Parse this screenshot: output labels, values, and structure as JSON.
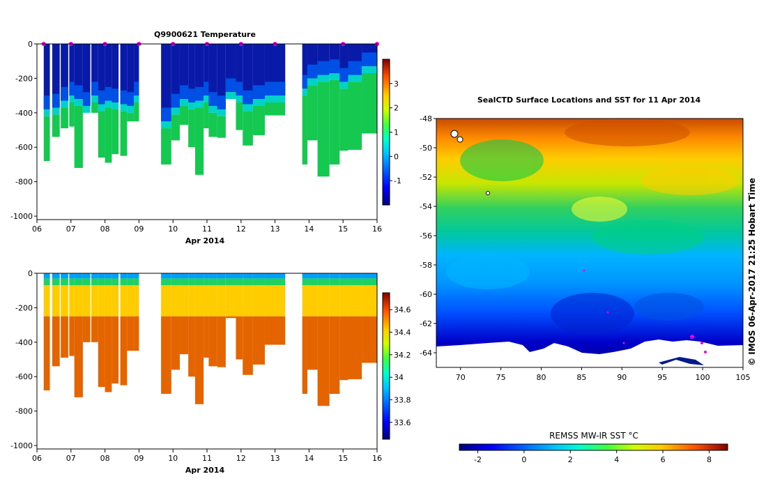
{
  "chart_data": [
    {
      "type": "heatmap",
      "title": "Q9900621  Temperature",
      "xlabel": "Apr 2014",
      "ylabel": "",
      "x_ticks": [
        "06",
        "07",
        "08",
        "09",
        "10",
        "11",
        "12",
        "13",
        "14",
        "15",
        "16"
      ],
      "x_range": [
        6,
        16
      ],
      "y_ticks": [
        0,
        -200,
        -400,
        -600,
        -800,
        -1000
      ],
      "ylim": [
        -1020,
        0
      ],
      "colorbar_ticks": [
        3,
        2,
        1,
        0,
        -1
      ],
      "colorbar_range": [
        -2,
        4
      ],
      "variable": "temperature",
      "gaps": [
        [
          9.0,
          9.65
        ],
        [
          13.3,
          13.8
        ]
      ],
      "profiles": [
        {
          "x": 6.2,
          "w": 0.18,
          "depth": 680,
          "thermocline": 380
        },
        {
          "x": 6.45,
          "w": 0.22,
          "depth": 540,
          "thermocline": 370
        },
        {
          "x": 6.7,
          "w": 0.22,
          "depth": 490,
          "thermocline": 330
        },
        {
          "x": 6.95,
          "w": 0.15,
          "depth": 480,
          "thermocline": 300
        },
        {
          "x": 7.1,
          "w": 0.25,
          "depth": 720,
          "thermocline": 320
        },
        {
          "x": 7.35,
          "w": 0.22,
          "depth": 400,
          "thermocline": 360
        },
        {
          "x": 7.6,
          "w": 0.2,
          "depth": 400,
          "thermocline": 300
        },
        {
          "x": 7.8,
          "w": 0.2,
          "depth": 660,
          "thermocline": 350
        },
        {
          "x": 8.0,
          "w": 0.2,
          "depth": 690,
          "thermocline": 330
        },
        {
          "x": 8.2,
          "w": 0.2,
          "depth": 640,
          "thermocline": 340
        },
        {
          "x": 8.45,
          "w": 0.2,
          "depth": 650,
          "thermocline": 350
        },
        {
          "x": 8.65,
          "w": 0.2,
          "depth": 450,
          "thermocline": 360
        },
        {
          "x": 8.85,
          "w": 0.15,
          "depth": 450,
          "thermocline": 300
        },
        {
          "x": 9.65,
          "w": 0.3,
          "depth": 700,
          "thermocline": 450
        },
        {
          "x": 9.95,
          "w": 0.25,
          "depth": 560,
          "thermocline": 370
        },
        {
          "x": 10.2,
          "w": 0.25,
          "depth": 470,
          "thermocline": 320
        },
        {
          "x": 10.45,
          "w": 0.2,
          "depth": 600,
          "thermocline": 340
        },
        {
          "x": 10.65,
          "w": 0.25,
          "depth": 760,
          "thermocline": 330
        },
        {
          "x": 10.9,
          "w": 0.15,
          "depth": 490,
          "thermocline": 300
        },
        {
          "x": 11.05,
          "w": 0.25,
          "depth": 540,
          "thermocline": 360
        },
        {
          "x": 11.3,
          "w": 0.25,
          "depth": 545,
          "thermocline": 380
        },
        {
          "x": 11.55,
          "w": 0.3,
          "depth": 260,
          "thermocline": 280
        },
        {
          "x": 11.85,
          "w": 0.2,
          "depth": 500,
          "thermocline": 300
        },
        {
          "x": 12.05,
          "w": 0.3,
          "depth": 590,
          "thermocline": 350
        },
        {
          "x": 12.35,
          "w": 0.35,
          "depth": 530,
          "thermocline": 320
        },
        {
          "x": 12.7,
          "w": 0.6,
          "depth": 415,
          "thermocline": 300
        },
        {
          "x": 13.8,
          "w": 0.15,
          "depth": 700,
          "thermocline": 260
        },
        {
          "x": 13.95,
          "w": 0.3,
          "depth": 560,
          "thermocline": 200
        },
        {
          "x": 14.25,
          "w": 0.35,
          "depth": 770,
          "thermocline": 180
        },
        {
          "x": 14.6,
          "w": 0.3,
          "depth": 700,
          "thermocline": 170
        },
        {
          "x": 14.9,
          "w": 0.25,
          "depth": 620,
          "thermocline": 220
        },
        {
          "x": 15.15,
          "w": 0.4,
          "depth": 615,
          "thermocline": 180
        },
        {
          "x": 15.55,
          "w": 0.45,
          "depth": 520,
          "thermocline": 130
        }
      ],
      "surfacings": [
        6.2,
        7.0,
        8.0,
        9.0,
        10.0,
        11.0,
        12.0,
        13.0,
        15.0,
        16.0
      ]
    },
    {
      "type": "heatmap",
      "title": "",
      "xlabel": "Apr 2014",
      "ylabel": "",
      "x_ticks": [
        "06",
        "07",
        "08",
        "09",
        "10",
        "11",
        "12",
        "13",
        "14",
        "15",
        "16"
      ],
      "x_range": [
        6,
        16
      ],
      "y_ticks": [
        0,
        -200,
        -400,
        -600,
        -800,
        -1000
      ],
      "ylim": [
        -1020,
        0
      ],
      "colorbar_ticks": [
        34.6,
        34.4,
        34.2,
        34,
        33.8,
        33.6
      ],
      "colorbar_tick_labels": [
        "34.6",
        "34.4",
        "34.2",
        "34",
        "33.8",
        "33.6"
      ],
      "colorbar_range": [
        33.45,
        34.75
      ],
      "variable": "salinity"
    },
    {
      "type": "heatmap",
      "title": "SealCTD Surface Locations and SST for 11 Apr 2014",
      "xlabel": "",
      "ylabel": "",
      "x_ticks": [
        70,
        75,
        80,
        85,
        90,
        95,
        100,
        105
      ],
      "x_range": [
        67,
        105
      ],
      "y_ticks": [
        -48,
        -50,
        -52,
        -54,
        -56,
        -58,
        -60,
        -62,
        -64
      ],
      "ylim": [
        -65,
        -48
      ],
      "colorbar_label": "REMSS MW-IR SST °C",
      "colorbar_ticks": [
        -2,
        0,
        2,
        4,
        6,
        8
      ],
      "colorbar_range": [
        -2.8,
        8.8
      ],
      "side_label": "© IMOS 06-Apr-2017 21:25 Hobart Time"
    }
  ],
  "colors": {
    "temp_scale": [
      "#00007f",
      "#0000ff",
      "#007fff",
      "#00ffff",
      "#00ff80",
      "#80ff00",
      "#ffff00",
      "#ff8000",
      "#ff0000",
      "#7f0000"
    ],
    "marker": "#e600e6"
  }
}
